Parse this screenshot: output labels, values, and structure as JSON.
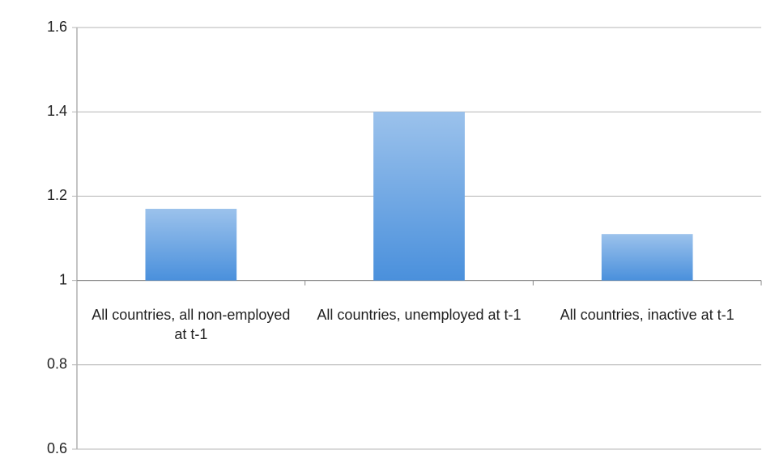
{
  "chart_data": {
    "type": "bar",
    "categories": [
      "All countries, all non-employed at t-1",
      "All countries, unemployed at t-1",
      "All countries, inactive at t-1"
    ],
    "values": [
      1.17,
      1.4,
      1.11
    ],
    "color": "#4a90dc",
    "baseline": 1,
    "ylim": [
      0.6,
      1.6
    ],
    "yticks": [
      0.6,
      0.8,
      1,
      1.2,
      1.4,
      1.6
    ],
    "grid": true
  }
}
